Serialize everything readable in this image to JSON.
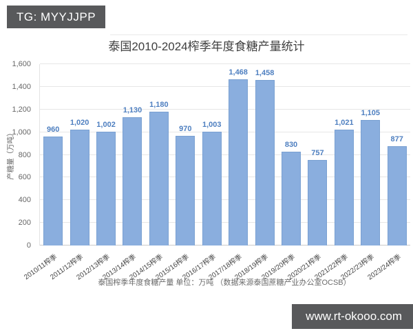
{
  "badge": {
    "label": "TG: MYYJJPP"
  },
  "watermark": {
    "label": "www.rt-okooo.com"
  },
  "chart_data": {
    "type": "bar",
    "title": "泰国2010-2024榨季年度食糖产量统计",
    "xlabel": "",
    "ylabel": "产糖量（万吨）",
    "footnote": "泰国榨季年度食糖产量 单位：万吨 （数据来源泰国蔗糖产业办公室OCSB）",
    "categories": [
      "2010/11榨季",
      "2011/12榨季",
      "2012/13榨季",
      "2013/14榨季",
      "2014/15榨季",
      "2015/16榨季",
      "2016/17榨季",
      "2017/18榨季",
      "2018/19榨季",
      "2019/20榨季",
      "2020/21榨季",
      "2021/22榨季",
      "2022/23榨季",
      "2023/24榨季"
    ],
    "values": [
      960,
      1020,
      1002,
      1130,
      1180,
      970,
      1003,
      1468,
      1458,
      830,
      757,
      1021,
      1105,
      877
    ],
    "value_labels": [
      "960",
      "1,020",
      "1,002",
      "1,130",
      "1,180",
      "970",
      "1,003",
      "1,468",
      "1,458",
      "830",
      "757",
      "1,021",
      "1,105",
      "877"
    ],
    "ylim": [
      0,
      1600
    ],
    "ytick_step": 200,
    "ytick_labels": [
      "0",
      "200",
      "400",
      "600",
      "800",
      "1,000",
      "1,200",
      "1,400",
      "1,600"
    ],
    "grid": true,
    "legend": null,
    "colors": {
      "bar_fill": "#8aaede",
      "bar_border": "#79a0d2",
      "value_label": "#4e7fc0",
      "grid_line": "#e6e6e6",
      "axis_text": "#666666",
      "badge_bg": "#58595b",
      "badge_text": "#ffffff"
    }
  }
}
